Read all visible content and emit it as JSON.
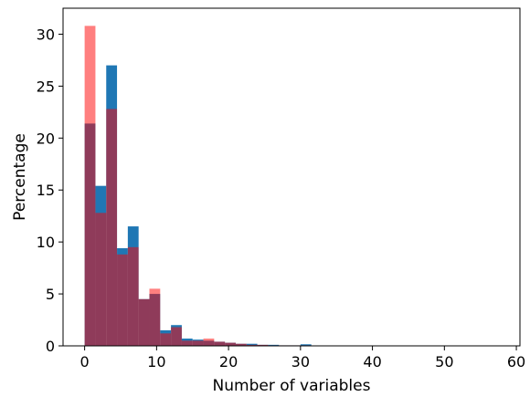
{
  "chart_data": {
    "type": "bar",
    "title": "",
    "xlabel": "Number of variables",
    "ylabel": "Percentage",
    "xlim": [
      -3,
      60.5
    ],
    "ylim": [
      0,
      32.5
    ],
    "xticks": [
      0,
      10,
      20,
      30,
      40,
      50,
      60
    ],
    "yticks": [
      0,
      5,
      10,
      15,
      20,
      25,
      30
    ],
    "bin_edges": [
      0,
      1.5,
      3,
      4.5,
      6,
      7.5,
      9,
      10.5,
      12,
      13.5,
      15,
      16.5,
      18,
      19.5,
      21,
      22.5,
      24,
      25.5,
      27,
      28.5,
      30,
      31.5
    ],
    "series": [
      {
        "color": "#1f77b4",
        "alpha": 1.0,
        "values": [
          21.4,
          15.4,
          27.0,
          9.4,
          11.5,
          4.5,
          5.0,
          1.5,
          2.0,
          0.7,
          0.6,
          0.5,
          0.4,
          0.3,
          0.2,
          0.2,
          0.1,
          0.1,
          0.05,
          0.05,
          0.15
        ]
      },
      {
        "color": "#ff0000",
        "alpha": 0.5,
        "values": [
          30.8,
          12.8,
          22.8,
          8.8,
          9.5,
          4.5,
          5.5,
          1.2,
          1.8,
          0.5,
          0.5,
          0.7,
          0.4,
          0.3,
          0.2,
          0.1,
          0.1,
          0.05,
          0.05,
          0.05,
          0.05
        ]
      }
    ],
    "grid": false,
    "legend": null
  }
}
